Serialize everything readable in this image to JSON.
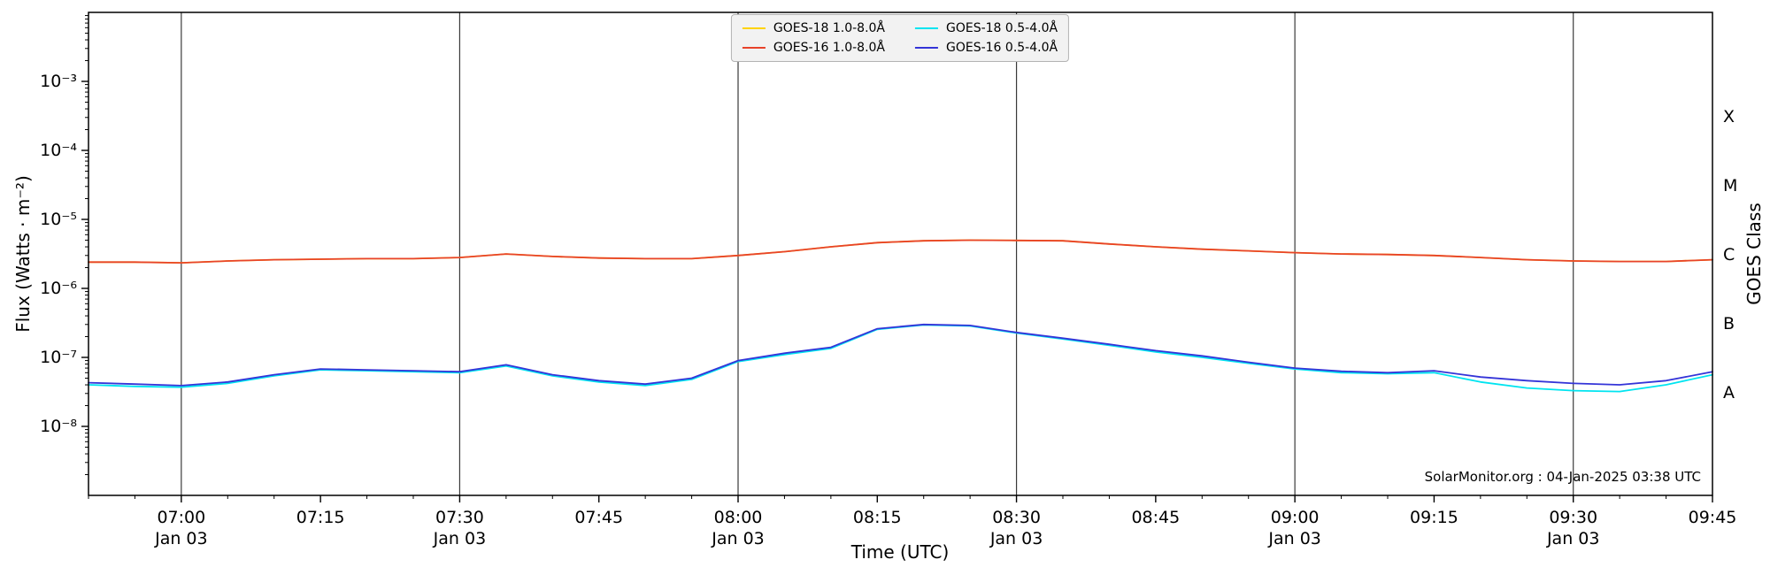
{
  "chart_data": {
    "type": "line",
    "title": "",
    "xlabel": "Time (UTC)",
    "ylabel": "Flux (Watts · m⁻²)",
    "ylabel_right": "GOES Class",
    "annotation": "SolarMonitor.org : 04-Jan-2025 03:38 UTC",
    "grid": "vertical-only",
    "grid_color": "#3a3a3a",
    "legend_position": "top-center",
    "x_range": [
      "06:50",
      "09:45"
    ],
    "log_range": [
      -9,
      -2
    ],
    "x_minor_step_min": 5,
    "y_ticks": [
      {
        "label": "10⁻³",
        "exp": -3
      },
      {
        "label": "10⁻⁴",
        "exp": -4
      },
      {
        "label": "10⁻⁵",
        "exp": -5
      },
      {
        "label": "10⁻⁶",
        "exp": -6
      },
      {
        "label": "10⁻⁷",
        "exp": -7
      },
      {
        "label": "10⁻⁸",
        "exp": -8
      }
    ],
    "goes_classes": [
      {
        "label": "X",
        "exp": -3.5
      },
      {
        "label": "M",
        "exp": -4.5
      },
      {
        "label": "C",
        "exp": -5.5
      },
      {
        "label": "B",
        "exp": -6.5
      },
      {
        "label": "A",
        "exp": -7.5
      }
    ],
    "x_ticks": [
      {
        "time": "07:00",
        "label": "07:00",
        "sub": "Jan 03",
        "grid": true
      },
      {
        "time": "07:15",
        "label": "07:15",
        "grid": false
      },
      {
        "time": "07:30",
        "label": "07:30",
        "sub": "Jan 03",
        "grid": true
      },
      {
        "time": "07:45",
        "label": "07:45",
        "grid": false
      },
      {
        "time": "08:00",
        "label": "08:00",
        "sub": "Jan 03",
        "grid": true
      },
      {
        "time": "08:15",
        "label": "08:15",
        "grid": false
      },
      {
        "time": "08:30",
        "label": "08:30",
        "sub": "Jan 03",
        "grid": true
      },
      {
        "time": "08:45",
        "label": "08:45",
        "grid": false
      },
      {
        "time": "09:00",
        "label": "09:00",
        "sub": "Jan 03",
        "grid": true
      },
      {
        "time": "09:15",
        "label": "09:15",
        "grid": false
      },
      {
        "time": "09:30",
        "label": "09:30",
        "sub": "Jan 03",
        "grid": true
      },
      {
        "time": "09:45",
        "label": "09:45",
        "grid": false
      }
    ],
    "x_times": [
      "06:50",
      "06:55",
      "07:00",
      "07:05",
      "07:10",
      "07:15",
      "07:20",
      "07:25",
      "07:30",
      "07:35",
      "07:40",
      "07:45",
      "07:50",
      "07:55",
      "08:00",
      "08:05",
      "08:10",
      "08:15",
      "08:20",
      "08:25",
      "08:30",
      "08:35",
      "08:40",
      "08:45",
      "08:50",
      "08:55",
      "09:00",
      "09:05",
      "09:10",
      "09:15",
      "09:20",
      "09:25",
      "09:30",
      "09:35",
      "09:40",
      "09:45"
    ],
    "series": [
      {
        "name": "GOES-18 1.0-8.0Å",
        "color": "#ffd300",
        "values": [
          2.4e-06,
          2.4e-06,
          2.35e-06,
          2.5e-06,
          2.6e-06,
          2.65e-06,
          2.7e-06,
          2.7e-06,
          2.8e-06,
          3.15e-06,
          2.9e-06,
          2.75e-06,
          2.7e-06,
          2.7e-06,
          3e-06,
          3.4e-06,
          4e-06,
          4.6e-06,
          4.9e-06,
          5e-06,
          4.95e-06,
          4.9e-06,
          4.4e-06,
          4e-06,
          3.7e-06,
          3.5e-06,
          3.3e-06,
          3.15e-06,
          3.1e-06,
          3e-06,
          2.8e-06,
          2.6e-06,
          2.5e-06,
          2.45e-06,
          2.45e-06,
          2.6e-06
        ]
      },
      {
        "name": "GOES-16 1.0-8.0Å",
        "color": "#e8432a",
        "values": [
          2.4e-06,
          2.4e-06,
          2.35e-06,
          2.5e-06,
          2.6e-06,
          2.65e-06,
          2.7e-06,
          2.7e-06,
          2.8e-06,
          3.15e-06,
          2.9e-06,
          2.75e-06,
          2.7e-06,
          2.7e-06,
          3e-06,
          3.4e-06,
          4e-06,
          4.6e-06,
          4.9e-06,
          5e-06,
          4.95e-06,
          4.9e-06,
          4.4e-06,
          4e-06,
          3.7e-06,
          3.5e-06,
          3.3e-06,
          3.15e-06,
          3.1e-06,
          3e-06,
          2.8e-06,
          2.6e-06,
          2.5e-06,
          2.45e-06,
          2.45e-06,
          2.6e-06
        ]
      },
      {
        "name": "GOES-18 0.5-4.0Å",
        "color": "#00e4f0",
        "values": [
          4e-08,
          3.8e-08,
          3.7e-08,
          4.2e-08,
          5.4e-08,
          6.6e-08,
          6.4e-08,
          6.2e-08,
          6e-08,
          7.5e-08,
          5.4e-08,
          4.4e-08,
          3.9e-08,
          4.8e-08,
          8.7e-08,
          1.1e-07,
          1.35e-07,
          2.55e-07,
          2.95e-07,
          2.85e-07,
          2.25e-07,
          1.85e-07,
          1.5e-07,
          1.2e-07,
          1e-07,
          8.2e-08,
          6.8e-08,
          6e-08,
          5.8e-08,
          6e-08,
          4.4e-08,
          3.6e-08,
          3.3e-08,
          3.2e-08,
          4e-08,
          5.6e-08
        ]
      },
      {
        "name": "GOES-16 0.5-4.0Å",
        "color": "#3434d8",
        "values": [
          4.3e-08,
          4.1e-08,
          3.9e-08,
          4.4e-08,
          5.6e-08,
          6.8e-08,
          6.6e-08,
          6.4e-08,
          6.2e-08,
          7.8e-08,
          5.6e-08,
          4.6e-08,
          4.1e-08,
          5e-08,
          9e-08,
          1.15e-07,
          1.4e-07,
          2.6e-07,
          3e-07,
          2.9e-07,
          2.3e-07,
          1.9e-07,
          1.55e-07,
          1.25e-07,
          1.05e-07,
          8.5e-08,
          7e-08,
          6.3e-08,
          6e-08,
          6.4e-08,
          5.2e-08,
          4.6e-08,
          4.2e-08,
          4e-08,
          4.6e-08,
          6.2e-08
        ]
      }
    ],
    "legend_order": [
      0,
      1,
      2,
      3
    ],
    "draw_order": [
      0,
      2,
      3,
      1
    ]
  }
}
